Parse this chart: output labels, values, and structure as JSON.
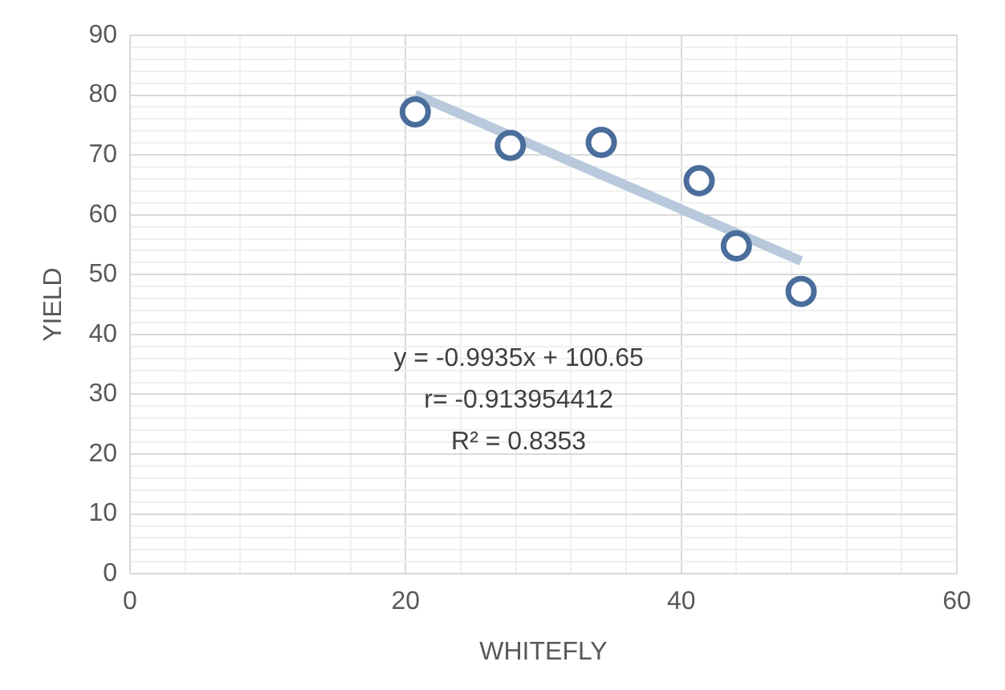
{
  "chart_data": {
    "type": "scatter",
    "xlabel": "WHITEFLY",
    "ylabel": "YIELD",
    "xlim": [
      0,
      60
    ],
    "ylim": [
      0,
      90
    ],
    "xticks": [
      0,
      {
        "value": 4,
        "label": null
      },
      {
        "value": 8,
        "label": null
      },
      {
        "value": 12,
        "label": null
      },
      {
        "value": 16,
        "label": null
      },
      20,
      {
        "value": 24,
        "label": null
      },
      {
        "value": 28,
        "label": null
      },
      {
        "value": 32,
        "label": null
      },
      {
        "value": 36,
        "label": null
      },
      40,
      {
        "value": 44,
        "label": null
      },
      {
        "value": 48,
        "label": null
      },
      {
        "value": 52,
        "label": null
      },
      {
        "value": 56,
        "label": null
      },
      60
    ],
    "yticks": [
      0,
      {
        "value": 2,
        "label": null
      },
      {
        "value": 4,
        "label": null
      },
      {
        "value": 6,
        "label": null
      },
      {
        "value": 8,
        "label": null
      },
      10,
      {
        "value": 12,
        "label": null
      },
      {
        "value": 14,
        "label": null
      },
      {
        "value": 16,
        "label": null
      },
      {
        "value": 18,
        "label": null
      },
      20,
      {
        "value": 22,
        "label": null
      },
      {
        "value": 24,
        "label": null
      },
      {
        "value": 26,
        "label": null
      },
      {
        "value": 28,
        "label": null
      },
      30,
      {
        "value": 32,
        "label": null
      },
      {
        "value": 34,
        "label": null
      },
      {
        "value": 36,
        "label": null
      },
      {
        "value": 38,
        "label": null
      },
      40,
      {
        "value": 42,
        "label": null
      },
      {
        "value": 44,
        "label": null
      },
      {
        "value": 46,
        "label": null
      },
      {
        "value": 48,
        "label": null
      },
      50,
      {
        "value": 52,
        "label": null
      },
      {
        "value": 54,
        "label": null
      },
      {
        "value": 56,
        "label": null
      },
      {
        "value": 58,
        "label": null
      },
      60,
      {
        "value": 62,
        "label": null
      },
      {
        "value": 64,
        "label": null
      },
      {
        "value": 66,
        "label": null
      },
      {
        "value": 68,
        "label": null
      },
      70,
      {
        "value": 72,
        "label": null
      },
      {
        "value": 74,
        "label": null
      },
      {
        "value": 76,
        "label": null
      },
      {
        "value": 78,
        "label": null
      },
      80,
      {
        "value": 82,
        "label": null
      },
      {
        "value": 84,
        "label": null
      },
      {
        "value": 86,
        "label": null
      },
      {
        "value": 88,
        "label": null
      },
      90
    ],
    "grid": true,
    "series": [
      {
        "marker": "circle",
        "color": "#4a6d9c",
        "x": [
          20.7,
          27.6,
          34.2,
          41.3,
          44.0,
          48.7
        ],
        "values": [
          77.2,
          71.6,
          72.1,
          65.7,
          54.8,
          47.2
        ]
      },
      {
        "type": "line",
        "marker": "none",
        "color": "#b8c9dc",
        "x": [
          20.7,
          48.7
        ],
        "values": [
          80.1,
          52.3
        ]
      }
    ],
    "annotations": [
      "y = -0.9935x + 100.65",
      "r= -0.913954412",
      "R² = 0.8353"
    ]
  }
}
